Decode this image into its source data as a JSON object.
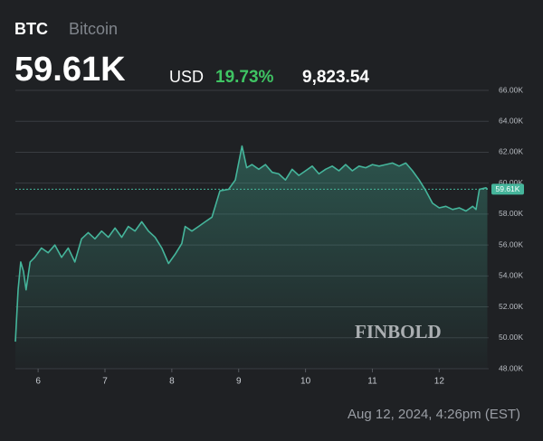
{
  "header": {
    "symbol": "BTC",
    "name": "Bitcoin",
    "price": "59.61K",
    "currency": "USD",
    "change_pct": "19.73%",
    "change_abs": "9,823.54"
  },
  "chart_data": {
    "type": "line",
    "color": "#45b59b",
    "grid": true,
    "x": [
      5.66,
      5.7,
      5.74,
      5.78,
      5.82,
      5.88,
      5.95,
      6.05,
      6.15,
      6.25,
      6.35,
      6.45,
      6.55,
      6.65,
      6.75,
      6.85,
      6.95,
      7.05,
      7.15,
      7.25,
      7.35,
      7.45,
      7.55,
      7.65,
      7.75,
      7.85,
      7.95,
      8.05,
      8.15,
      8.2,
      8.3,
      8.4,
      8.5,
      8.6,
      8.72,
      8.85,
      8.95,
      9.05,
      9.12,
      9.2,
      9.3,
      9.4,
      9.5,
      9.6,
      9.7,
      9.8,
      9.9,
      10.0,
      10.1,
      10.2,
      10.3,
      10.4,
      10.5,
      10.6,
      10.7,
      10.8,
      10.9,
      11.0,
      11.1,
      11.2,
      11.3,
      11.4,
      11.5,
      11.6,
      11.7,
      11.8,
      11.9,
      12.0,
      12.1,
      12.2,
      12.3,
      12.4,
      12.5,
      12.55,
      12.6,
      12.7,
      12.72
    ],
    "values": [
      49.75,
      53.1,
      54.9,
      54.3,
      53.1,
      54.9,
      55.2,
      55.8,
      55.5,
      56.0,
      55.2,
      55.8,
      54.9,
      56.4,
      56.8,
      56.4,
      56.9,
      56.5,
      57.1,
      56.5,
      57.2,
      56.9,
      57.5,
      56.9,
      56.5,
      55.8,
      54.8,
      55.4,
      56.1,
      57.2,
      56.9,
      57.2,
      57.5,
      57.8,
      59.5,
      59.6,
      60.2,
      62.4,
      61.0,
      61.2,
      60.9,
      61.2,
      60.7,
      60.6,
      60.2,
      60.9,
      60.5,
      60.8,
      61.1,
      60.6,
      60.9,
      61.1,
      60.8,
      61.2,
      60.8,
      61.1,
      61.0,
      61.2,
      61.1,
      61.2,
      61.3,
      61.1,
      61.3,
      60.8,
      60.2,
      59.5,
      58.7,
      58.4,
      58.5,
      58.3,
      58.4,
      58.2,
      58.5,
      58.3,
      59.6,
      59.7,
      59.61
    ],
    "xlim": [
      5.66,
      12.74
    ],
    "xticks": [
      6,
      7,
      8,
      9,
      10,
      11,
      12
    ],
    "ylim": [
      48,
      66
    ],
    "yticks": [
      {
        "value": 48,
        "label": "48.00K"
      },
      {
        "value": 50,
        "label": "50.00K"
      },
      {
        "value": 52,
        "label": "52.00K"
      },
      {
        "value": 54,
        "label": "54.00K"
      },
      {
        "value": 56,
        "label": "56.00K"
      },
      {
        "value": 58,
        "label": "58.00K"
      },
      {
        "value": 60,
        "label": "60.00K"
      },
      {
        "value": 62,
        "label": "62.00K"
      },
      {
        "value": 64,
        "label": "64.00K"
      },
      {
        "value": 66,
        "label": "66.00K"
      }
    ],
    "last_value": 59.61,
    "last_label": "59.61K",
    "watermark": "FINBOLD",
    "timestamp": "Aug 12, 2024, 4:26pm (EST)"
  }
}
